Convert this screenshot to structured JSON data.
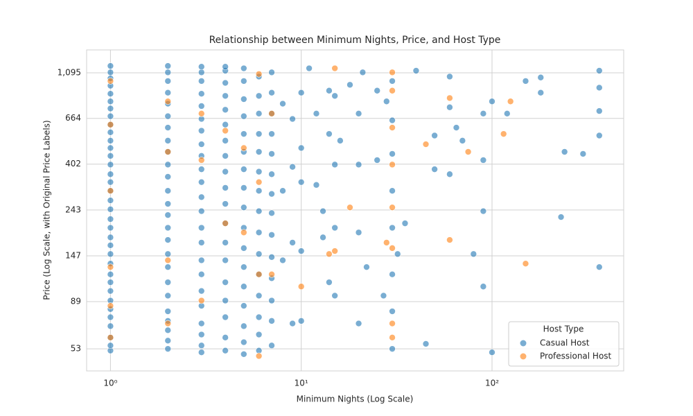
{
  "chart_data": {
    "type": "scatter",
    "title": "Relationship between Minimum Nights, Price, and Host Type",
    "x_label": "Minimum Nights (Log Scale)",
    "y_label": "Price (Log Scale, with Original Price Labels)",
    "x_log": true,
    "y_log": true,
    "grid": true,
    "legend_title": "Host Type",
    "legend_position": "lower right",
    "xlim": [
      0.75,
      490
    ],
    "ylim": [
      41.6,
      1407
    ],
    "xticks": [
      {
        "value": 1,
        "label": "10⁰"
      },
      {
        "value": 10,
        "label": "10¹"
      },
      {
        "value": 100,
        "label": "10²"
      }
    ],
    "yticks": [
      53,
      89,
      147,
      243,
      402,
      664,
      {
        "value": 1095,
        "label": "1,095"
      }
    ],
    "series": [
      {
        "name": "Casual Host",
        "color": "#1f77b4",
        "x": [
          1,
          1,
          1,
          1,
          1,
          1,
          1,
          1,
          1,
          1,
          1,
          1,
          1,
          1,
          1,
          1,
          1,
          1,
          1,
          1,
          1,
          1,
          1,
          1,
          1,
          1,
          1,
          1,
          1,
          1,
          1,
          1,
          1,
          1,
          1,
          2,
          2,
          2,
          2,
          2,
          2,
          2,
          2,
          2,
          2,
          2,
          2,
          2,
          2,
          2,
          2,
          2,
          2,
          2,
          2,
          2,
          2,
          2,
          2,
          2,
          3,
          3,
          3,
          3,
          3,
          3,
          3,
          3,
          3,
          3,
          3,
          3,
          3,
          3,
          3,
          3,
          3,
          3,
          3,
          3,
          3,
          3,
          3,
          4,
          4,
          4,
          4,
          4,
          4,
          4,
          4,
          4,
          4,
          4,
          4,
          4,
          4,
          4,
          4,
          4,
          4,
          4,
          5,
          5,
          5,
          5,
          5,
          5,
          5,
          5,
          5,
          5,
          5,
          5,
          5,
          5,
          5,
          5,
          5,
          6,
          6,
          6,
          6,
          6,
          6,
          6,
          6,
          6,
          6,
          6,
          6,
          6,
          6,
          6,
          7,
          7,
          7,
          7,
          7,
          7,
          7,
          7,
          7,
          7,
          7,
          7,
          7,
          7,
          8,
          8,
          8,
          9,
          9,
          9,
          9,
          10,
          10,
          10,
          10,
          10,
          11,
          12,
          12,
          13,
          13,
          14,
          14,
          14,
          15,
          15,
          15,
          15,
          16,
          18,
          20,
          20,
          20,
          20,
          21,
          22,
          25,
          25,
          27,
          28,
          30,
          30,
          30,
          30,
          30,
          30,
          30,
          30,
          32,
          35,
          40,
          45,
          50,
          50,
          60,
          60,
          60,
          65,
          70,
          80,
          90,
          90,
          90,
          90,
          100,
          100,
          120,
          150,
          180,
          180,
          240,
          230,
          300,
          365,
          365,
          365,
          365,
          365
        ],
        "values": [
          52,
          55,
          60,
          68,
          75,
          82,
          90,
          100,
          110,
          120,
          135,
          150,
          165,
          180,
          200,
          220,
          245,
          270,
          300,
          330,
          360,
          400,
          440,
          480,
          520,
          570,
          620,
          680,
          740,
          800,
          870,
          950,
          1030,
          1100,
          1180,
          53,
          58,
          65,
          72,
          80,
          95,
          110,
          130,
          150,
          175,
          200,
          230,
          260,
          300,
          350,
          400,
          460,
          520,
          600,
          680,
          780,
          880,
          1000,
          1100,
          1180,
          51,
          55,
          62,
          70,
          85,
          100,
          120,
          140,
          170,
          200,
          240,
          280,
          330,
          380,
          440,
          500,
          580,
          660,
          760,
          870,
          1000,
          1100,
          1170,
          52,
          60,
          75,
          90,
          110,
          140,
          170,
          210,
          260,
          310,
          370,
          440,
          520,
          620,
          730,
          850,
          980,
          1120,
          1170,
          50,
          57,
          68,
          85,
          105,
          130,
          160,
          200,
          250,
          310,
          380,
          460,
          560,
          680,
          820,
          1000,
          1150,
          52,
          62,
          75,
          95,
          120,
          150,
          190,
          240,
          300,
          370,
          460,
          560,
          700,
          850,
          1050,
          55,
          72,
          90,
          115,
          145,
          185,
          235,
          290,
          360,
          450,
          560,
          700,
          880,
          1100,
          140,
          300,
          780,
          70,
          170,
          390,
          660,
          72,
          155,
          330,
          480,
          880,
          1150,
          700,
          320,
          180,
          240,
          110,
          560,
          900,
          95,
          200,
          400,
          850,
          520,
          960,
          70,
          190,
          400,
          700,
          1100,
          130,
          420,
          900,
          95,
          800,
          53,
          80,
          120,
          200,
          300,
          450,
          650,
          1000,
          150,
          210,
          1120,
          56,
          380,
          550,
          360,
          1050,
          750,
          600,
          520,
          150,
          105,
          240,
          420,
          700,
          51,
          800,
          700,
          1000,
          1040,
          880,
          460,
          225,
          450,
          130,
          550,
          720,
          1120,
          930
        ]
      },
      {
        "name": "Professional Host",
        "color": "#ff7f0e",
        "x": [
          1,
          1,
          1,
          1,
          1,
          1,
          2,
          2,
          2,
          2,
          3,
          3,
          3,
          4,
          4,
          5,
          5,
          6,
          6,
          6,
          6,
          7,
          7,
          15,
          15,
          14,
          10,
          18,
          28,
          30,
          30,
          30,
          30,
          30,
          30,
          30,
          30,
          45,
          60,
          60,
          75,
          115,
          125,
          150
        ],
        "values": [
          60,
          85,
          130,
          300,
          620,
          1000,
          70,
          140,
          460,
          800,
          90,
          420,
          700,
          210,
          580,
          190,
          480,
          49,
          120,
          330,
          1080,
          700,
          120,
          155,
          1150,
          150,
          105,
          250,
          170,
          60,
          70,
          160,
          250,
          400,
          600,
          900,
          1100,
          500,
          175,
          830,
          460,
          560,
          800,
          135
        ]
      }
    ]
  }
}
